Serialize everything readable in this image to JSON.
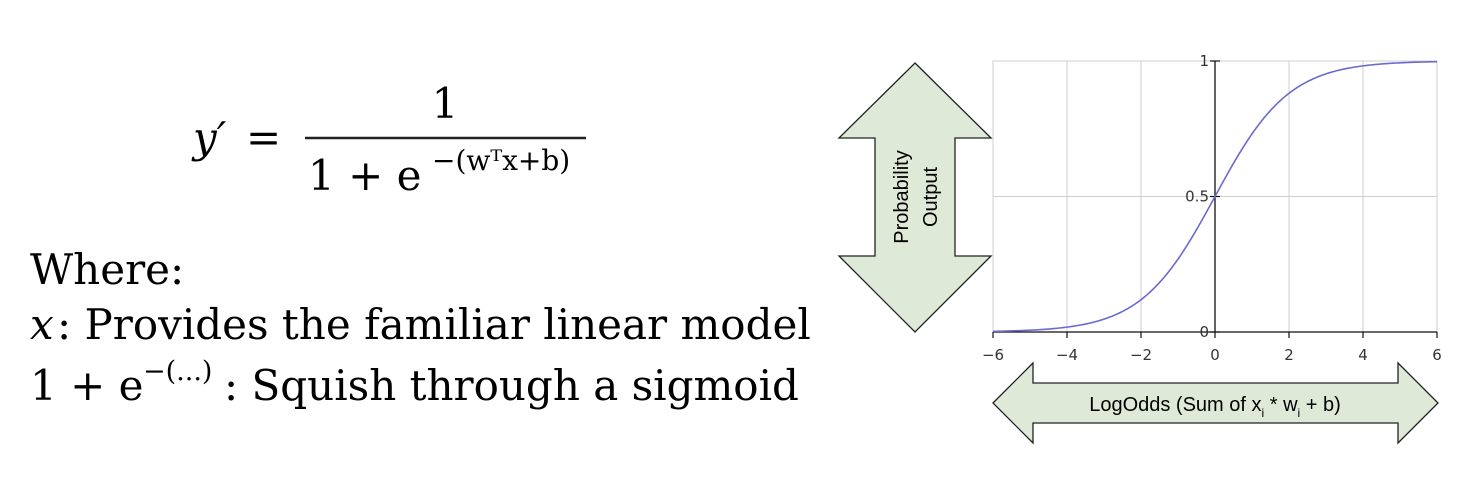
{
  "formula": {
    "lhs": "y′",
    "equals": "=",
    "numerator": "1",
    "denominator_base": "1 + e",
    "denominator_exponent": "−(wᵀx+b)"
  },
  "explanation": {
    "heading": "Where:",
    "line1_symbol": "x",
    "line1_text": ": Provides the familiar linear model",
    "line2_symbol_base": "1 + e",
    "line2_symbol_exponent": "−(...)",
    "line2_text": ": Squish through a sigmoid"
  },
  "arrows": {
    "vertical_label_line1": "Probability",
    "vertical_label_line2": "Output",
    "horizontal_label_prefix": "LogOdds (Sum of x",
    "horizontal_label_sub1": "i",
    "horizontal_label_mid": " * w",
    "horizontal_label_sub2": "i",
    "horizontal_label_suffix": " + b)",
    "fill_color": "#dfe9d7",
    "stroke_color": "#222222"
  },
  "chart_data": {
    "type": "line",
    "function": "sigmoid",
    "series": [
      {
        "x": [
          -6,
          -5,
          -4,
          -3,
          -2,
          -1,
          0,
          1,
          2,
          3,
          4,
          5,
          6
        ],
        "y": [
          0.0025,
          0.0067,
          0.018,
          0.0474,
          0.1192,
          0.2689,
          0.5,
          0.7311,
          0.8808,
          0.9526,
          0.982,
          0.9933,
          0.9975
        ],
        "color": "#6b6bcf"
      }
    ],
    "xlim": [
      -6,
      6
    ],
    "ylim": [
      0,
      1
    ],
    "x_ticks": [
      "−6",
      "−4",
      "−2",
      "0",
      "2",
      "4",
      "6"
    ],
    "x_tick_values": [
      -6,
      -4,
      -2,
      0,
      2,
      4,
      6
    ],
    "y_ticks": [
      "0",
      "0.5",
      "1"
    ],
    "y_tick_values": [
      0,
      0.5,
      1
    ],
    "grid": true
  }
}
